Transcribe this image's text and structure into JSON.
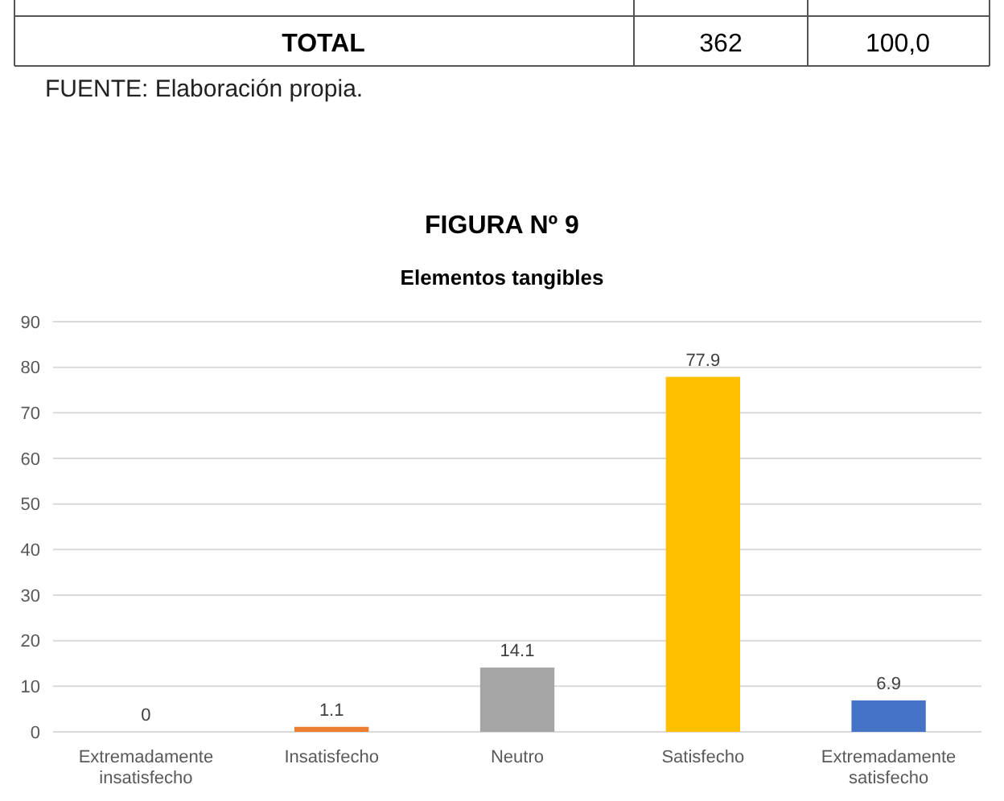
{
  "chart_data": {
    "type": "bar",
    "title": "FIGURA Nº 9",
    "subtitle": "Elementos tangibles",
    "categories": [
      "Extremadamente insatisfecho",
      "Insatisfecho",
      "Neutro",
      "Satisfecho",
      "Extremadamente satisfecho"
    ],
    "values": [
      0,
      1.1,
      14.1,
      77.9,
      6.9
    ],
    "colors": [
      "#5b9bd5",
      "#ed7d31",
      "#a5a5a5",
      "#ffc000",
      "#4472c4"
    ],
    "ylim": [
      0,
      90
    ],
    "yticks": [
      0,
      10,
      20,
      30,
      40,
      50,
      60,
      70,
      80,
      90
    ],
    "grid": "y",
    "data_labels": true,
    "annotations": [
      "TOTAL",
      "362",
      "100,0",
      "FUENTE: Elaboración propia."
    ]
  }
}
